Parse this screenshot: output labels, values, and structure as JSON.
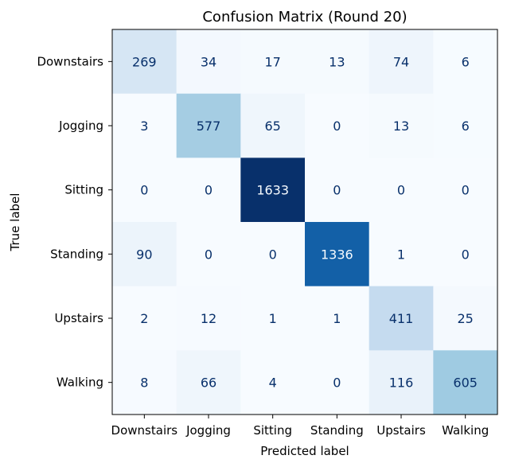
{
  "chart_data": {
    "type": "heatmap",
    "title": "Confusion Matrix (Round 20)",
    "xlabel": "Predicted label",
    "ylabel": "True label",
    "x_categories": [
      "Downstairs",
      "Jogging",
      "Sitting",
      "Standing",
      "Upstairs",
      "Walking"
    ],
    "y_categories": [
      "Downstairs",
      "Jogging",
      "Sitting",
      "Standing",
      "Upstairs",
      "Walking"
    ],
    "values": [
      [
        269,
        34,
        17,
        13,
        74,
        6
      ],
      [
        3,
        577,
        65,
        0,
        13,
        6
      ],
      [
        0,
        0,
        1633,
        0,
        0,
        0
      ],
      [
        90,
        0,
        0,
        1336,
        1,
        0
      ],
      [
        2,
        12,
        1,
        1,
        411,
        25
      ],
      [
        8,
        66,
        4,
        0,
        116,
        605
      ]
    ],
    "colormap": "Blues",
    "value_range": [
      0,
      1633
    ],
    "colorbar": false,
    "grid": false,
    "colors": {
      "low": "#f7fbff",
      "high": "#08306b",
      "text_dark": "#08306b",
      "text_light": "#f7fbff",
      "axis": "#000000"
    }
  }
}
